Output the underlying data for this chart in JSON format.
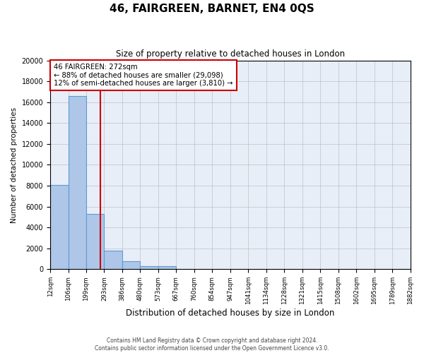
{
  "title": "46, FAIRGREEN, BARNET, EN4 0QS",
  "subtitle": "Size of property relative to detached houses in London",
  "xlabel": "Distribution of detached houses by size in London",
  "ylabel": "Number of detached properties",
  "bin_labels": [
    "12sqm",
    "106sqm",
    "199sqm",
    "293sqm",
    "386sqm",
    "480sqm",
    "573sqm",
    "667sqm",
    "760sqm",
    "854sqm",
    "947sqm",
    "1041sqm",
    "1134sqm",
    "1228sqm",
    "1321sqm",
    "1415sqm",
    "1508sqm",
    "1602sqm",
    "1695sqm",
    "1789sqm",
    "1882sqm"
  ],
  "bar_values": [
    8100,
    16600,
    5300,
    1750,
    800,
    300,
    300,
    0,
    0,
    0,
    0,
    0,
    0,
    0,
    0,
    0,
    0,
    0,
    0,
    0
  ],
  "bar_color": "#aec6e8",
  "bar_edge_color": "#5b9bd5",
  "property_size": 272,
  "annotation_text_line1": "46 FAIRGREEN: 272sqm",
  "annotation_text_line2": "← 88% of detached houses are smaller (29,098)",
  "annotation_text_line3": "12% of semi-detached houses are larger (3,810) →",
  "ylim": [
    0,
    20000
  ],
  "yticks": [
    0,
    2000,
    4000,
    6000,
    8000,
    10000,
    12000,
    14000,
    16000,
    18000,
    20000
  ],
  "grid_color": "#c0c0c0",
  "footnote1": "Contains HM Land Registry data © Crown copyright and database right 2024.",
  "footnote2": "Contains public sector information licensed under the Open Government Licence v3.0.",
  "red_line_color": "#cc0000",
  "annotation_box_edge_color": "#cc0000",
  "background_color": "#e8eef8"
}
